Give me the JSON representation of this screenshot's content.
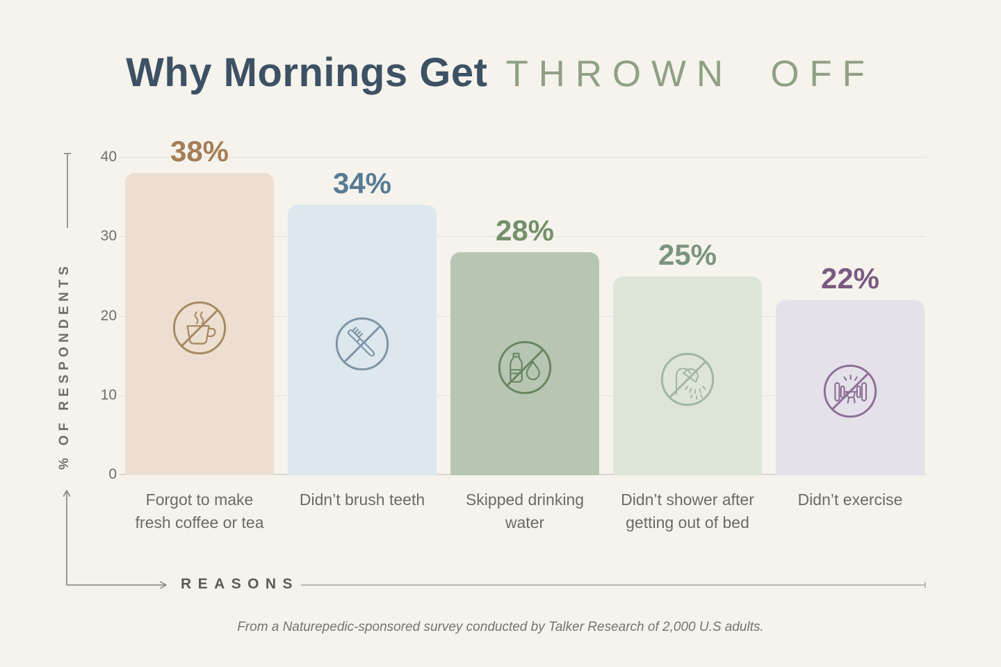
{
  "title": {
    "main": "Why Mornings Get",
    "accent": "THROWN OFF"
  },
  "y_axis": {
    "label": "% OF RESPONDENTS",
    "ticks": [
      "40",
      "30",
      "20",
      "10",
      "0"
    ]
  },
  "x_axis": {
    "label": "REASONS"
  },
  "footer": "From a Naturepedic-sponsored survey conducted by Talker Research of 2,000 U.S adults.",
  "colors": {
    "background": "#f5f3ec",
    "title_main": "#3d5164",
    "title_accent": "#90a085",
    "gridline": "#e2e0d7",
    "axis_line": "#9a9a92",
    "tick_text": "#6e6e67",
    "category_text": "#6b6b65",
    "footer_text": "#74746e"
  },
  "chart_data": {
    "type": "bar",
    "title": "Why Mornings Get Thrown Off",
    "xlabel": "Reasons",
    "ylabel": "% of Respondents",
    "ylim": [
      0,
      40
    ],
    "yticks": [
      0,
      10,
      20,
      30,
      40
    ],
    "grid": true,
    "legend": "none",
    "categories": [
      "Forgot to make fresh coffee or tea",
      "Didn’t brush teeth",
      "Skipped drinking water",
      "Didn’t shower after getting out of bed",
      "Didn’t exercise"
    ],
    "values": [
      38,
      34,
      28,
      25,
      22
    ],
    "bars": [
      {
        "label": "Forgot to make\nfresh coffee or tea",
        "value": 38,
        "value_label": "38%",
        "icon": "no-coffee-icon",
        "bar_color": "#ecdfd1",
        "accent_color": "#a57e57",
        "icon_color": "#a78a63"
      },
      {
        "label": "Didn’t brush teeth",
        "value": 34,
        "value_label": "34%",
        "icon": "no-toothbrush-icon",
        "bar_color": "#dde7ee",
        "accent_color": "#577b94",
        "icon_color": "#7e95a6"
      },
      {
        "label": "Skipped drinking\nwater",
        "value": 28,
        "value_label": "28%",
        "icon": "no-water-icon",
        "bar_color": "#b7c6b2",
        "accent_color": "#75906b",
        "icon_color": "#6a8661"
      },
      {
        "label": "Didn’t shower after\ngetting out of bed",
        "value": 25,
        "value_label": "25%",
        "icon": "no-shower-icon",
        "bar_color": "#dde5d9",
        "accent_color": "#7a947f",
        "icon_color": "#a3b5a3"
      },
      {
        "label": "Didn’t exercise",
        "value": 22,
        "value_label": "22%",
        "icon": "no-dumbbell-icon",
        "bar_color": "#e5e1eb",
        "accent_color": "#7a5a82",
        "icon_color": "#8d7195"
      }
    ],
    "source_note": "From a Naturepedic-sponsored survey conducted by Talker Research of 2,000 U.S adults."
  }
}
